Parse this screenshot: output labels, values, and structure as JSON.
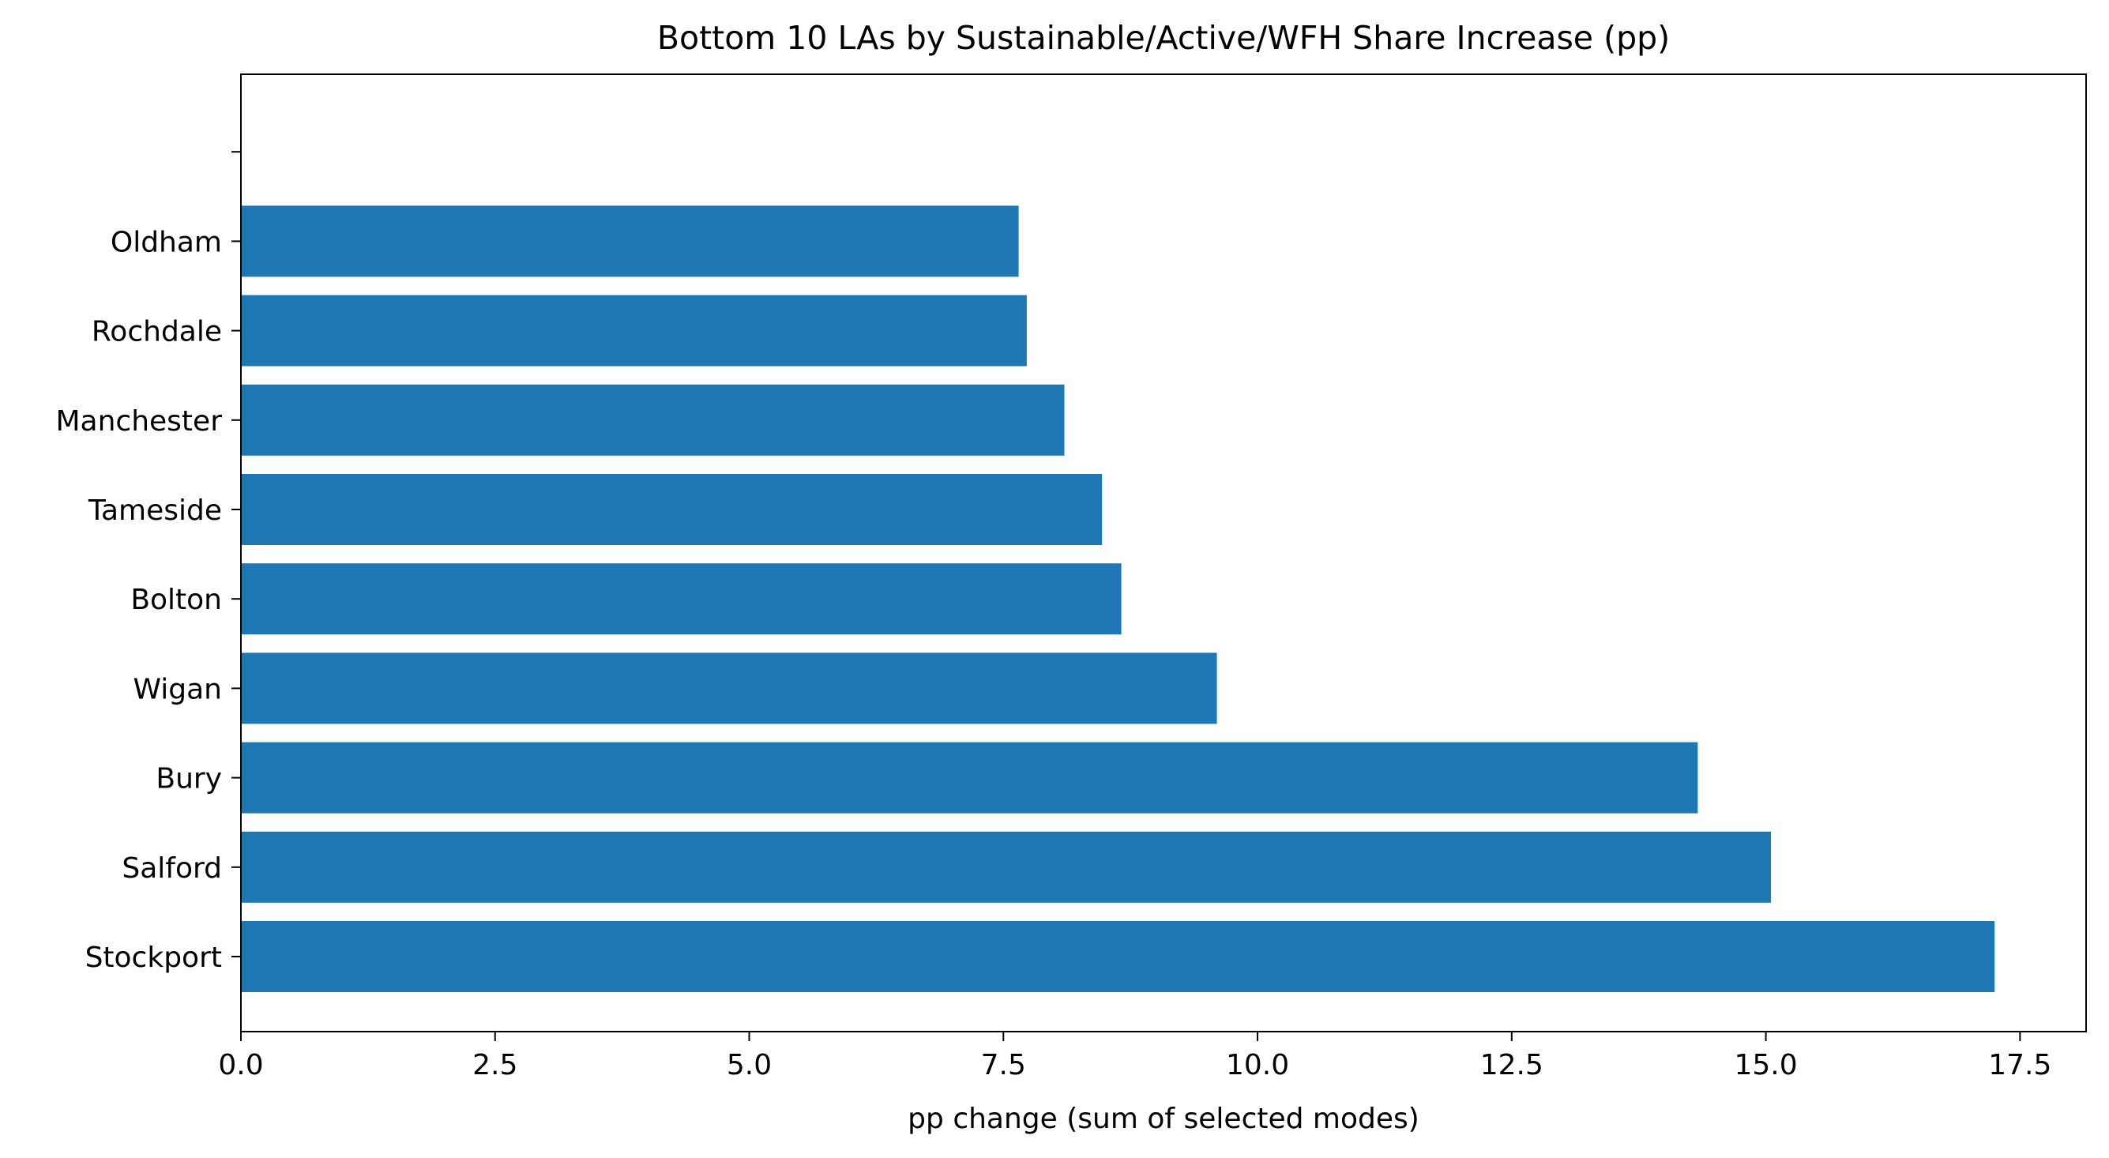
{
  "chart_data": {
    "type": "bar",
    "orientation": "horizontal",
    "title": "Bottom 10 LAs by Sustainable/Active/WFH Share Increase (pp)",
    "xlabel": "pp change (sum of selected modes)",
    "ylabel": "",
    "categories": [
      "Stockport",
      "Salford",
      "Bury",
      "Wigan",
      "Bolton",
      "Tameside",
      "Manchester",
      "Rochdale",
      "Oldham",
      ""
    ],
    "values": [
      17.25,
      15.05,
      14.33,
      9.6,
      8.66,
      8.47,
      8.1,
      7.73,
      7.65,
      null
    ],
    "xlim": [
      0,
      18.15
    ],
    "xticks": [
      "0.0",
      "2.5",
      "5.0",
      "7.5",
      "10.0",
      "12.5",
      "15.0",
      "17.5"
    ],
    "xtick_values": [
      0,
      2.5,
      5,
      7.5,
      10,
      12.5,
      15,
      17.5
    ],
    "bar_color": "#1f77b4",
    "grid": false,
    "legend": "none"
  }
}
